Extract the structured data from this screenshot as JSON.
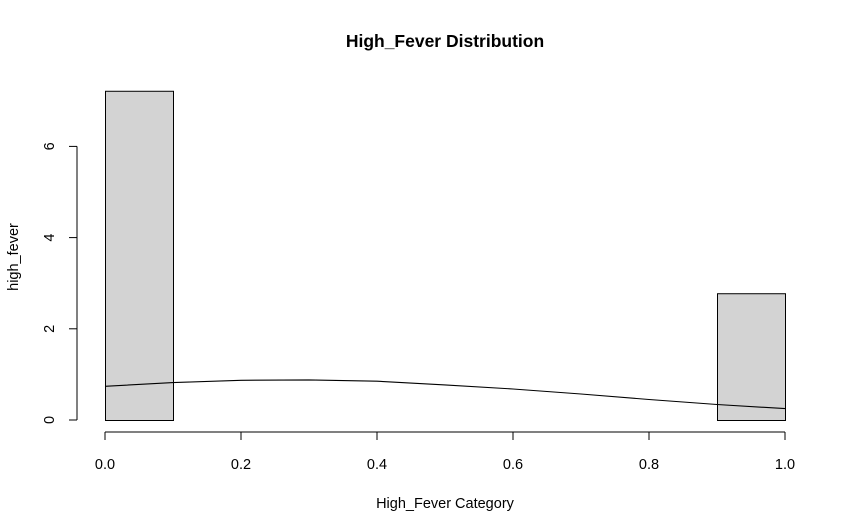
{
  "chart_data": {
    "type": "bar",
    "title": "High_Fever Distribution",
    "xlabel": "High_Fever Category",
    "ylabel": "high_fever",
    "xlim": [
      0,
      1
    ],
    "ylim": [
      0,
      7.2
    ],
    "x_ticks": [
      0.0,
      0.2,
      0.4,
      0.6,
      0.8,
      1.0
    ],
    "x_tick_labels": [
      "0.0",
      "0.2",
      "0.4",
      "0.6",
      "0.8",
      "1.0"
    ],
    "y_ticks": [
      0,
      2,
      4,
      6
    ],
    "y_tick_labels": [
      "0",
      "2",
      "4",
      "6"
    ],
    "bins": [
      {
        "x0": 0.0,
        "x1": 0.1,
        "density": 7.22
      },
      {
        "x0": 0.9,
        "x1": 1.0,
        "density": 2.78
      }
    ],
    "density_curve": {
      "x": [
        0.0,
        0.1,
        0.2,
        0.3,
        0.4,
        0.5,
        0.6,
        0.7,
        0.8,
        0.9,
        1.0
      ],
      "y": [
        0.74,
        0.82,
        0.87,
        0.88,
        0.85,
        0.77,
        0.68,
        0.57,
        0.45,
        0.34,
        0.25
      ]
    },
    "grid": false
  }
}
